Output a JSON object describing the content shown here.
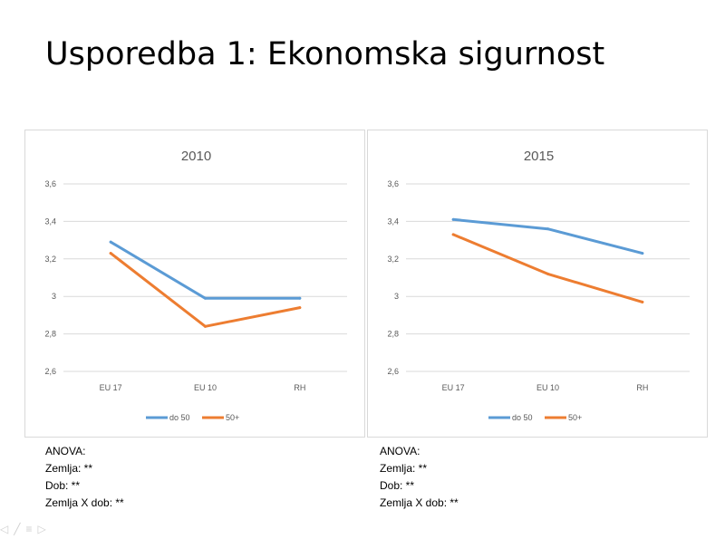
{
  "slide": {
    "title": "Usporedba 1: Ekonomska sigurnost"
  },
  "chart_data": [
    {
      "type": "line",
      "title": "2010",
      "categories": [
        "EU 17",
        "EU 10",
        "RH"
      ],
      "ylim": [
        2.6,
        3.6
      ],
      "yticks": [
        "3,6",
        "3,4",
        "3,2",
        "3",
        "2,8",
        "2,6"
      ],
      "ytick_values": [
        3.6,
        3.4,
        3.2,
        3.0,
        2.8,
        2.6
      ],
      "grid": true,
      "legend_position": "bottom",
      "series": [
        {
          "name": "do 50",
          "color": "#5b9bd5",
          "values": [
            3.29,
            2.99,
            2.99
          ]
        },
        {
          "name": "50+",
          "color": "#ed7d31",
          "values": [
            3.23,
            2.84,
            2.94
          ]
        }
      ]
    },
    {
      "type": "line",
      "title": "2015",
      "categories": [
        "EU 17",
        "EU 10",
        "RH"
      ],
      "ylim": [
        2.6,
        3.6
      ],
      "yticks": [
        "3,6",
        "3,4",
        "3,2",
        "3",
        "2,8",
        "2,6"
      ],
      "ytick_values": [
        3.6,
        3.4,
        3.2,
        3.0,
        2.8,
        2.6
      ],
      "grid": true,
      "legend_position": "bottom",
      "series": [
        {
          "name": "do 50",
          "color": "#5b9bd5",
          "values": [
            3.41,
            3.36,
            3.23
          ]
        },
        {
          "name": "50+",
          "color": "#ed7d31",
          "values": [
            3.33,
            3.12,
            2.97
          ]
        }
      ]
    }
  ],
  "anova": [
    {
      "heading": "ANOVA:",
      "lines": [
        "Zemlja: **",
        "Dob: **",
        "Zemlja X dob: **"
      ]
    },
    {
      "heading": "ANOVA:",
      "lines": [
        "Zemlja: **",
        "Dob: **",
        "Zemlja X dob: **"
      ]
    }
  ],
  "colors": {
    "series_blue": "#5b9bd5",
    "series_orange": "#ed7d31",
    "gridline": "#d9d9d9",
    "axis_text": "#595959"
  },
  "controls": {
    "icons": [
      "prev-slide-icon",
      "pen-icon",
      "menu-icon",
      "next-slide-icon"
    ],
    "glyphs": [
      "◁",
      "╱",
      "≡",
      "▷"
    ]
  }
}
